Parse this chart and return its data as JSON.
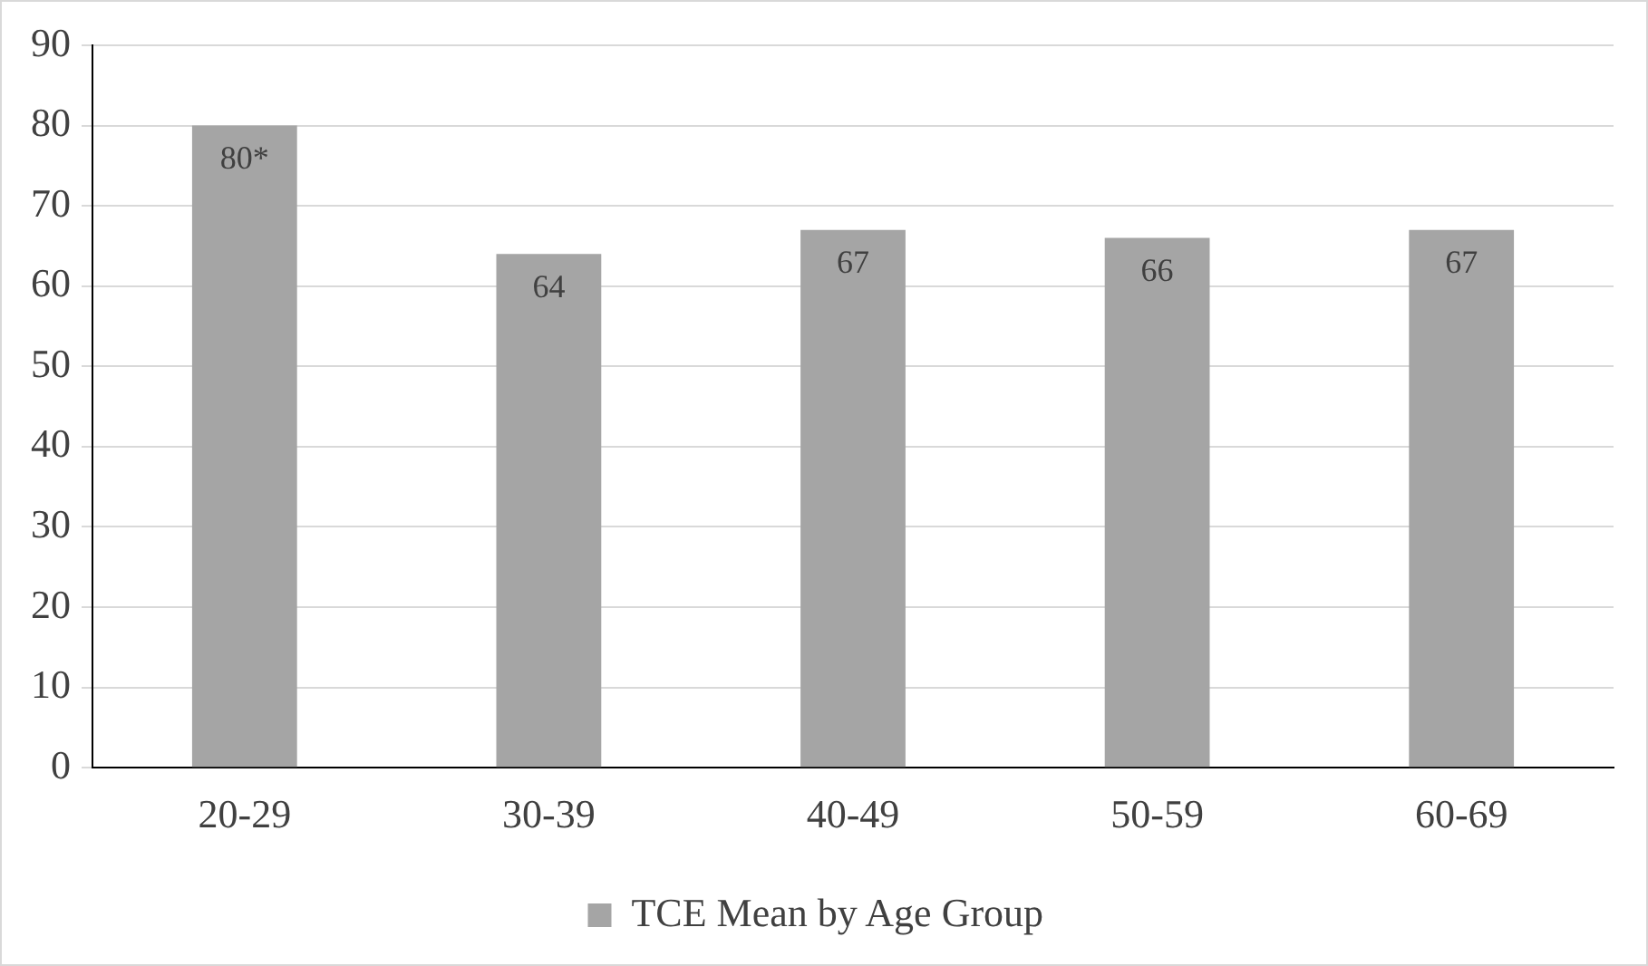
{
  "chart_data": {
    "type": "bar",
    "categories": [
      "20-29",
      "30-39",
      "40-49",
      "50-59",
      "60-69"
    ],
    "series": [
      {
        "name": "TCE Mean by Age Group",
        "color": "#a5a5a5",
        "values": [
          80,
          64,
          67,
          66,
          67
        ],
        "value_labels": [
          "80*",
          "64",
          "67",
          "66",
          "67"
        ]
      }
    ],
    "ylim": [
      0,
      90
    ],
    "yticks": [
      0,
      10,
      20,
      30,
      40,
      50,
      60,
      70,
      80,
      90
    ],
    "grid": "y",
    "legend": "bottom"
  }
}
